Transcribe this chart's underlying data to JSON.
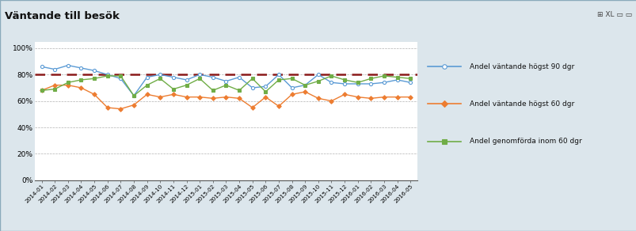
{
  "title": "Väntande till besök",
  "labels": [
    "2014-01",
    "2014-02",
    "2014-03",
    "2014-04",
    "2014-05",
    "2014-06",
    "2014-07",
    "2014-08",
    "2014-09",
    "2014-10",
    "2014-11",
    "2014-12",
    "2015-01",
    "2015-02",
    "2015-03",
    "2015-04",
    "2015-05",
    "2015-06",
    "2015-07",
    "2015-08",
    "2015-09",
    "2015-10",
    "2015-11",
    "2015-12",
    "2016-01",
    "2016-02",
    "2016-03",
    "2016-04",
    "2016-05"
  ],
  "series_90": [
    86,
    84,
    87,
    85,
    83,
    80,
    77,
    64,
    78,
    80,
    78,
    76,
    80,
    78,
    75,
    78,
    70,
    71,
    80,
    70,
    72,
    80,
    74,
    73,
    73,
    73,
    74,
    76,
    74
  ],
  "series_60": [
    68,
    72,
    72,
    70,
    65,
    55,
    54,
    57,
    65,
    63,
    65,
    63,
    63,
    62,
    63,
    62,
    55,
    63,
    56,
    65,
    67,
    62,
    60,
    65,
    63,
    62,
    63,
    63,
    63
  ],
  "series_inom60": [
    68,
    69,
    74,
    76,
    77,
    79,
    79,
    64,
    72,
    77,
    69,
    72,
    77,
    68,
    72,
    68,
    77,
    67,
    76,
    77,
    72,
    75,
    79,
    76,
    74,
    77,
    79,
    78,
    77
  ],
  "color_90": "#5b9bd5",
  "color_60": "#ed7d31",
  "color_inom60": "#70ad47",
  "reference_line": 80,
  "reference_color": "#8b1a1a",
  "legend_90": "Andel väntande högst 90 dgr",
  "legend_60": "Andel väntande högst 60 dgr",
  "legend_inom60": "Andel genomförda inom 60 dgr",
  "header_bg": "#b8cdd8",
  "plot_bg": "#ffffff",
  "outer_bg": "#dce6ec",
  "yticks": [
    0,
    20,
    40,
    60,
    80,
    100
  ],
  "ylim": [
    0,
    105
  ]
}
